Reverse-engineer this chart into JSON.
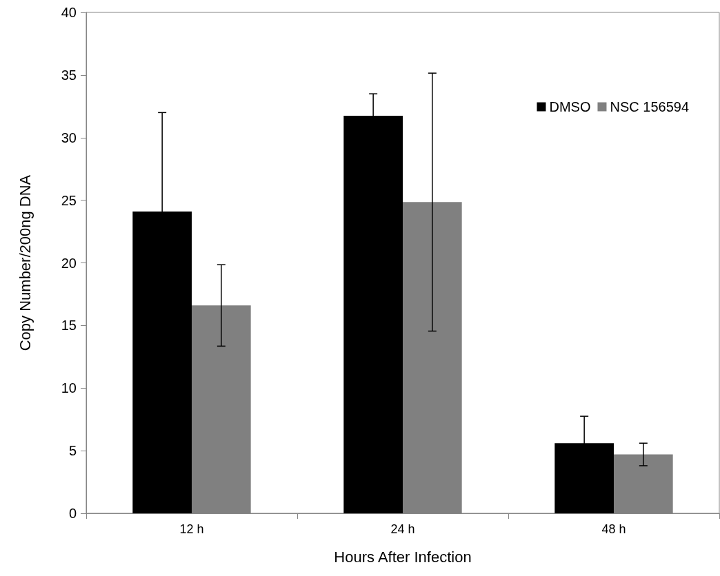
{
  "chart_data": {
    "type": "bar",
    "xlabel": "Hours After Infection",
    "ylabel": "Copy Number/200ng DNA",
    "categories": [
      "12 h",
      "24 h",
      "48 h"
    ],
    "series": [
      {
        "name": "DMSO",
        "color": "#000000",
        "values": [
          24.1,
          31.75,
          5.6
        ],
        "errors": [
          7.9,
          1.75,
          2.15
        ]
      },
      {
        "name": "NSC 156594",
        "color": "#808080",
        "values": [
          16.6,
          24.85,
          4.7
        ],
        "errors": [
          3.25,
          10.3,
          0.9
        ]
      }
    ],
    "ylim": [
      0,
      40
    ],
    "yticks": [
      0,
      5,
      10,
      15,
      20,
      25,
      30,
      35,
      40
    ],
    "grid": false,
    "legend": "top right"
  }
}
